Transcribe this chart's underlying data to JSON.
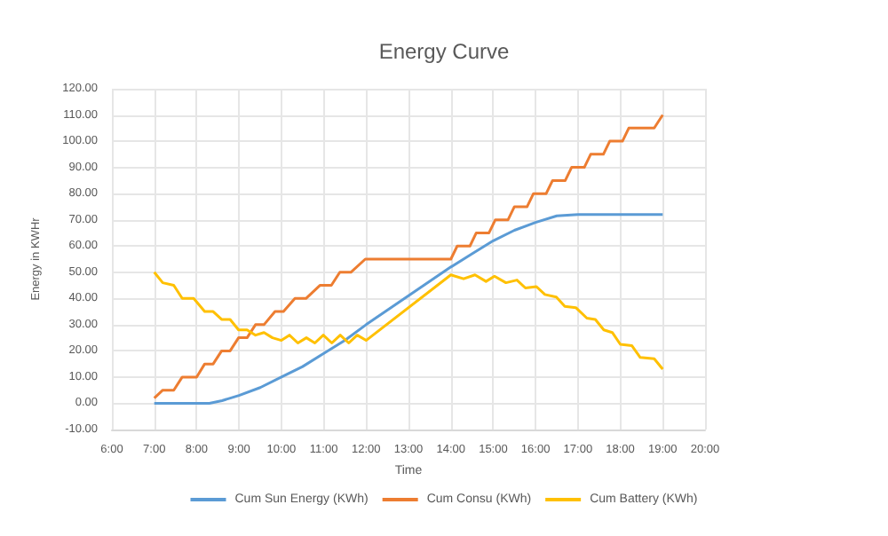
{
  "chart_data": {
    "type": "line",
    "title": "Energy Curve",
    "xlabel": "Time",
    "ylabel": "Energy in KWHr",
    "xlim": [
      6,
      20
    ],
    "xticks": [
      {
        "value": 6,
        "label": "6:00"
      },
      {
        "value": 7,
        "label": "7:00"
      },
      {
        "value": 8,
        "label": "8:00"
      },
      {
        "value": 9,
        "label": "9:00"
      },
      {
        "value": 10,
        "label": "10:00"
      },
      {
        "value": 11,
        "label": "11:00"
      },
      {
        "value": 12,
        "label": "12:00"
      },
      {
        "value": 13,
        "label": "13:00"
      },
      {
        "value": 14,
        "label": "14:00"
      },
      {
        "value": 15,
        "label": "15:00"
      },
      {
        "value": 16,
        "label": "16:00"
      },
      {
        "value": 17,
        "label": "17:00"
      },
      {
        "value": 18,
        "label": "18:00"
      },
      {
        "value": 19,
        "label": "19:00"
      },
      {
        "value": 20,
        "label": "20:00"
      }
    ],
    "ylim": [
      -10,
      120
    ],
    "yticks": [
      {
        "value": -10,
        "label": "-10.00"
      },
      {
        "value": 0,
        "label": "0.00"
      },
      {
        "value": 10,
        "label": "10.00"
      },
      {
        "value": 20,
        "label": "20.00"
      },
      {
        "value": 30,
        "label": "30.00"
      },
      {
        "value": 40,
        "label": "40.00"
      },
      {
        "value": 50,
        "label": "50.00"
      },
      {
        "value": 60,
        "label": "60.00"
      },
      {
        "value": 70,
        "label": "70.00"
      },
      {
        "value": 80,
        "label": "80.00"
      },
      {
        "value": 90,
        "label": "90.00"
      },
      {
        "value": 100,
        "label": "100.00"
      },
      {
        "value": 110,
        "label": "110.00"
      },
      {
        "value": 120,
        "label": "120.00"
      }
    ],
    "grid": true,
    "legend": "bottom",
    "marker": "none",
    "line_style": "solid",
    "series": [
      {
        "name": "Cum Sun Energy (KWh)",
        "color": "#5b9bd5",
        "x": [
          7,
          8,
          8.3,
          8.6,
          9,
          9.5,
          10,
          10.5,
          11,
          11.5,
          12,
          12.5,
          13,
          13.5,
          14,
          14.5,
          15,
          15.5,
          16,
          16.5,
          17,
          18,
          19
        ],
        "values": [
          0,
          0,
          0,
          1,
          3,
          6,
          10,
          14,
          19,
          24,
          30,
          35.5,
          41,
          46.5,
          52,
          57,
          62,
          66,
          69,
          71.5,
          72,
          72,
          72
        ]
      },
      {
        "name": "Cum Consu (KWh)",
        "color": "#ed7d31",
        "x": [
          7,
          7.2,
          7.46,
          7.66,
          8,
          8.19,
          8.39,
          8.59,
          8.79,
          8.99,
          9.19,
          9.39,
          9.59,
          9.85,
          10.05,
          10.32,
          10.58,
          10.91,
          11.18,
          11.38,
          11.64,
          11.98,
          14,
          14.15,
          14.45,
          14.6,
          14.9,
          15.05,
          15.35,
          15.5,
          15.8,
          15.95,
          16.25,
          16.4,
          16.7,
          16.85,
          17.15,
          17.3,
          17.6,
          17.75,
          18.05,
          18.2,
          18.8,
          19
        ],
        "values": [
          2,
          5,
          5,
          10,
          10,
          15,
          15,
          20,
          20,
          25,
          25,
          30,
          30,
          35,
          35,
          40,
          40,
          45,
          45,
          50,
          50,
          55,
          55,
          60,
          60,
          65,
          65,
          70,
          70,
          75,
          75,
          80,
          80,
          85,
          85,
          90,
          90,
          95,
          95,
          100,
          100,
          105,
          105,
          110
        ]
      },
      {
        "name": "Cum Battery (KWh)",
        "color": "#ffc000",
        "x": [
          7,
          7.2,
          7.46,
          7.66,
          7.93,
          8.19,
          8.39,
          8.59,
          8.79,
          8.99,
          9.19,
          9.39,
          9.59,
          9.79,
          10,
          10.19,
          10.39,
          10.59,
          10.79,
          10.99,
          11.19,
          11.39,
          11.59,
          11.79,
          12,
          14,
          14.3,
          14.57,
          14.83,
          15.03,
          15.3,
          15.56,
          15.76,
          16.02,
          16.22,
          16.49,
          16.69,
          16.95,
          17.21,
          17.41,
          17.61,
          17.81,
          18,
          18.27,
          18.47,
          18.8,
          19
        ],
        "values": [
          50,
          46,
          45,
          40,
          40,
          35,
          35,
          32,
          32,
          28,
          28,
          26,
          27,
          25,
          24,
          26,
          23,
          25,
          23,
          26,
          23,
          26,
          23,
          26,
          24,
          49,
          47.5,
          49,
          46.5,
          48.5,
          46,
          47,
          44,
          44.5,
          41.5,
          40.5,
          37,
          36.5,
          32.5,
          32,
          28,
          27,
          22.5,
          22,
          17.5,
          17,
          13
        ]
      }
    ]
  }
}
